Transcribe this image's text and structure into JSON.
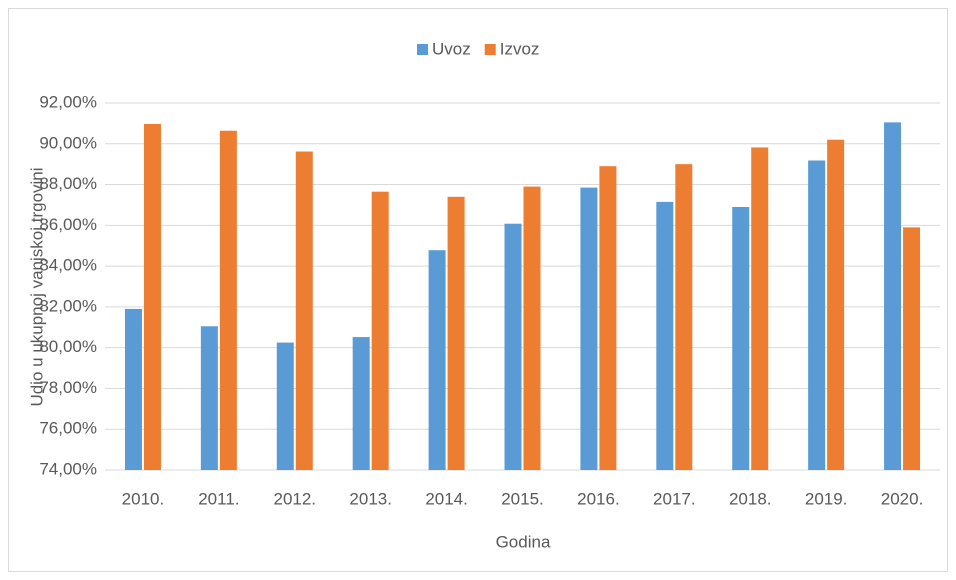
{
  "chart_data": {
    "type": "bar",
    "categories": [
      "2010.",
      "2011.",
      "2012.",
      "2013.",
      "2014.",
      "2015.",
      "2016.",
      "2017.",
      "2018.",
      "2019.",
      "2020."
    ],
    "series": [
      {
        "name": "Uvoz",
        "color": "#5b9bd5",
        "values": [
          81.9,
          81.05,
          80.25,
          80.52,
          84.78,
          86.08,
          87.85,
          87.15,
          86.9,
          89.18,
          91.05
        ]
      },
      {
        "name": "Izvoz",
        "color": "#ed7d31",
        "values": [
          90.97,
          90.64,
          89.62,
          87.65,
          87.4,
          87.9,
          88.9,
          89.0,
          89.82,
          90.2,
          85.9
        ]
      }
    ],
    "xlabel": "Godina",
    "ylabel": "Udio u ukupnoj vanjskoj trgovini",
    "ylim": [
      74,
      92
    ],
    "yticks": [
      {
        "value": 74,
        "label": "74,00%"
      },
      {
        "value": 76,
        "label": "76,00%"
      },
      {
        "value": 78,
        "label": "78,00%"
      },
      {
        "value": 80,
        "label": "80,00%"
      },
      {
        "value": 82,
        "label": "82,00%"
      },
      {
        "value": 84,
        "label": "84,00%"
      },
      {
        "value": 86,
        "label": "86,00%"
      },
      {
        "value": 88,
        "label": "88,00%"
      },
      {
        "value": 90,
        "label": "90,00%"
      },
      {
        "value": 92,
        "label": "92,00%"
      }
    ],
    "grid": true,
    "legend": "top"
  }
}
